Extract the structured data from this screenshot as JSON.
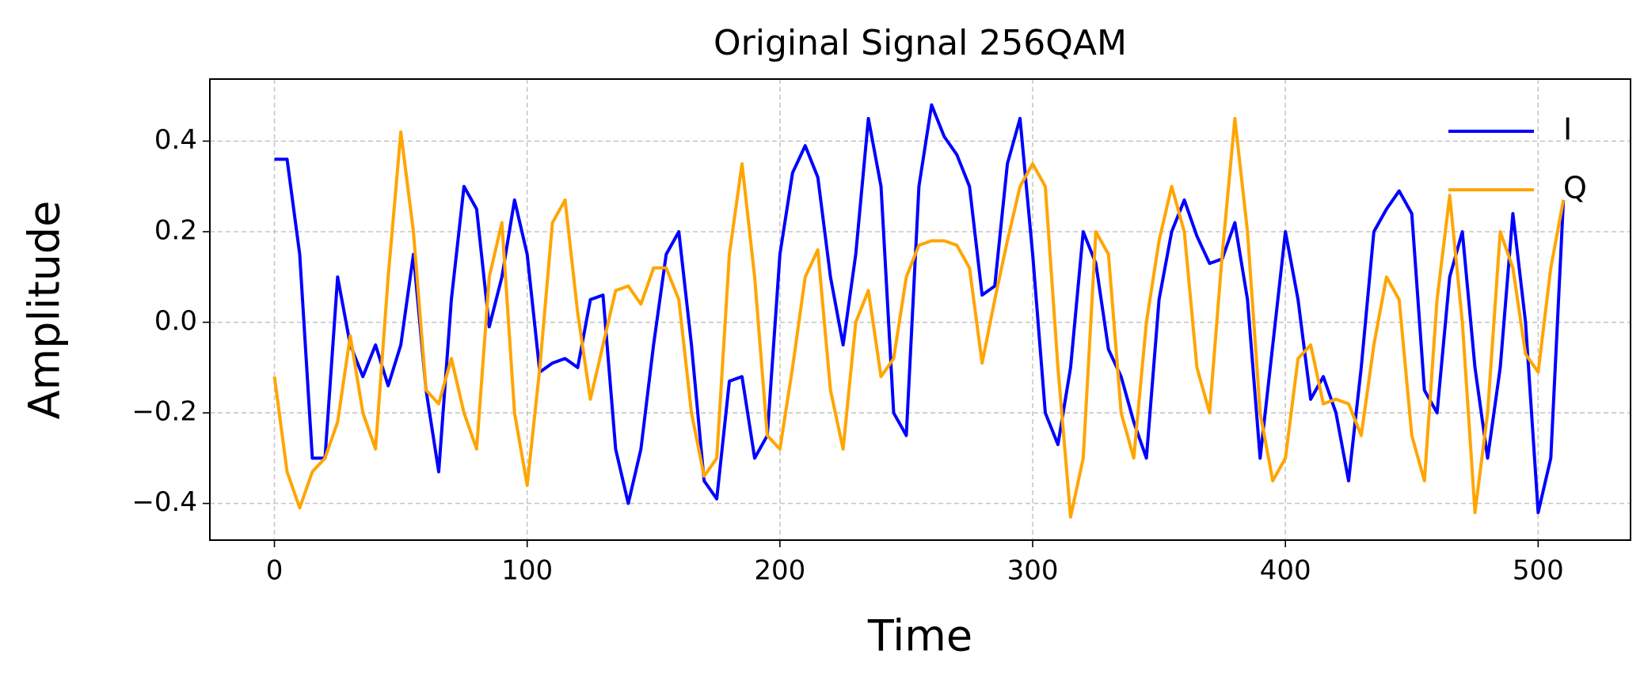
{
  "chart_data": {
    "type": "line",
    "title": "Original Signal 256QAM",
    "xlabel": "Time",
    "ylabel": "Amplitude",
    "x": [
      0,
      5,
      10,
      15,
      20,
      25,
      30,
      35,
      40,
      45,
      50,
      55,
      60,
      65,
      70,
      75,
      80,
      85,
      90,
      95,
      100,
      105,
      110,
      115,
      120,
      125,
      130,
      135,
      140,
      145,
      150,
      155,
      160,
      165,
      170,
      175,
      180,
      185,
      190,
      195,
      200,
      205,
      210,
      215,
      220,
      225,
      230,
      235,
      240,
      245,
      250,
      255,
      260,
      265,
      270,
      275,
      280,
      285,
      290,
      295,
      300,
      305,
      310,
      315,
      320,
      325,
      330,
      335,
      340,
      345,
      350,
      355,
      360,
      365,
      370,
      375,
      380,
      385,
      390,
      395,
      400,
      405,
      410,
      415,
      420,
      425,
      430,
      435,
      440,
      445,
      450,
      455,
      460,
      465,
      470,
      475,
      480,
      485,
      490,
      495,
      500,
      505,
      510
    ],
    "series": [
      {
        "name": "I",
        "color": "#0000ff",
        "values": [
          0.36,
          0.36,
          0.15,
          -0.3,
          -0.3,
          0.1,
          -0.05,
          -0.12,
          -0.05,
          -0.14,
          -0.05,
          0.15,
          -0.15,
          -0.33,
          0.05,
          0.3,
          0.25,
          -0.01,
          0.1,
          0.27,
          0.15,
          -0.11,
          -0.09,
          -0.08,
          -0.1,
          0.05,
          0.06,
          -0.28,
          -0.4,
          -0.28,
          -0.05,
          0.15,
          0.2,
          -0.05,
          -0.35,
          -0.39,
          -0.13,
          -0.12,
          -0.3,
          -0.25,
          0.15,
          0.33,
          0.39,
          0.32,
          0.1,
          -0.05,
          0.15,
          0.45,
          0.3,
          -0.2,
          -0.25,
          0.3,
          0.48,
          0.41,
          0.37,
          0.3,
          0.06,
          0.08,
          0.35,
          0.45,
          0.15,
          -0.2,
          -0.27,
          -0.1,
          0.2,
          0.13,
          -0.06,
          -0.12,
          -0.22,
          -0.3,
          0.05,
          0.2,
          0.27,
          0.19,
          0.13,
          0.14,
          0.22,
          0.05,
          -0.3,
          -0.05,
          0.2,
          0.05,
          -0.17,
          -0.12,
          -0.2,
          -0.35,
          -0.1,
          0.2,
          0.25,
          0.29,
          0.24,
          -0.15,
          -0.2,
          0.1,
          0.2,
          -0.1,
          -0.3,
          -0.1,
          0.24,
          0,
          -0.42,
          -0.3,
          0.27
        ]
      },
      {
        "name": "Q",
        "color": "#ffa500",
        "values": [
          -0.12,
          -0.33,
          -0.41,
          -0.33,
          -0.3,
          -0.22,
          -0.03,
          -0.2,
          -0.28,
          0.1,
          0.42,
          0.2,
          -0.15,
          -0.18,
          -0.08,
          -0.2,
          -0.28,
          0.1,
          0.22,
          -0.2,
          -0.36,
          -0.1,
          0.22,
          0.27,
          0.02,
          -0.17,
          -0.05,
          0.07,
          0.08,
          0.04,
          0.12,
          0.12,
          0.05,
          -0.2,
          -0.34,
          -0.3,
          0.15,
          0.35,
          0.1,
          -0.25,
          -0.28,
          -0.1,
          0.1,
          0.16,
          -0.15,
          -0.28,
          0,
          0.07,
          -0.12,
          -0.08,
          0.1,
          0.17,
          0.18,
          0.18,
          0.17,
          0.12,
          -0.09,
          0.05,
          0.18,
          0.3,
          0.35,
          0.3,
          -0.1,
          -0.43,
          -0.3,
          0.2,
          0.15,
          -0.2,
          -0.3,
          0,
          0.18,
          0.3,
          0.2,
          -0.1,
          -0.2,
          0.15,
          0.45,
          0.2,
          -0.2,
          -0.35,
          -0.3,
          -0.08,
          -0.05,
          -0.18,
          -0.17,
          -0.18,
          -0.25,
          -0.05,
          0.1,
          0.05,
          -0.25,
          -0.35,
          0.05,
          0.28,
          0,
          -0.42,
          -0.2,
          0.2,
          0.12,
          -0.07,
          -0.11,
          0.12,
          0.27
        ]
      }
    ],
    "xlim": [
      -25.55,
      536.55
    ],
    "ylim": [
      -0.481,
      0.537
    ],
    "xticks": [
      0,
      100,
      200,
      300,
      400,
      500
    ],
    "yticks": [
      {
        "value": -0.4,
        "label": "−0.4"
      },
      {
        "value": -0.2,
        "label": "−0.2"
      },
      {
        "value": 0,
        "label": "0.0"
      },
      0.2,
      0.4
    ],
    "grid": true,
    "legend": "upper right"
  }
}
